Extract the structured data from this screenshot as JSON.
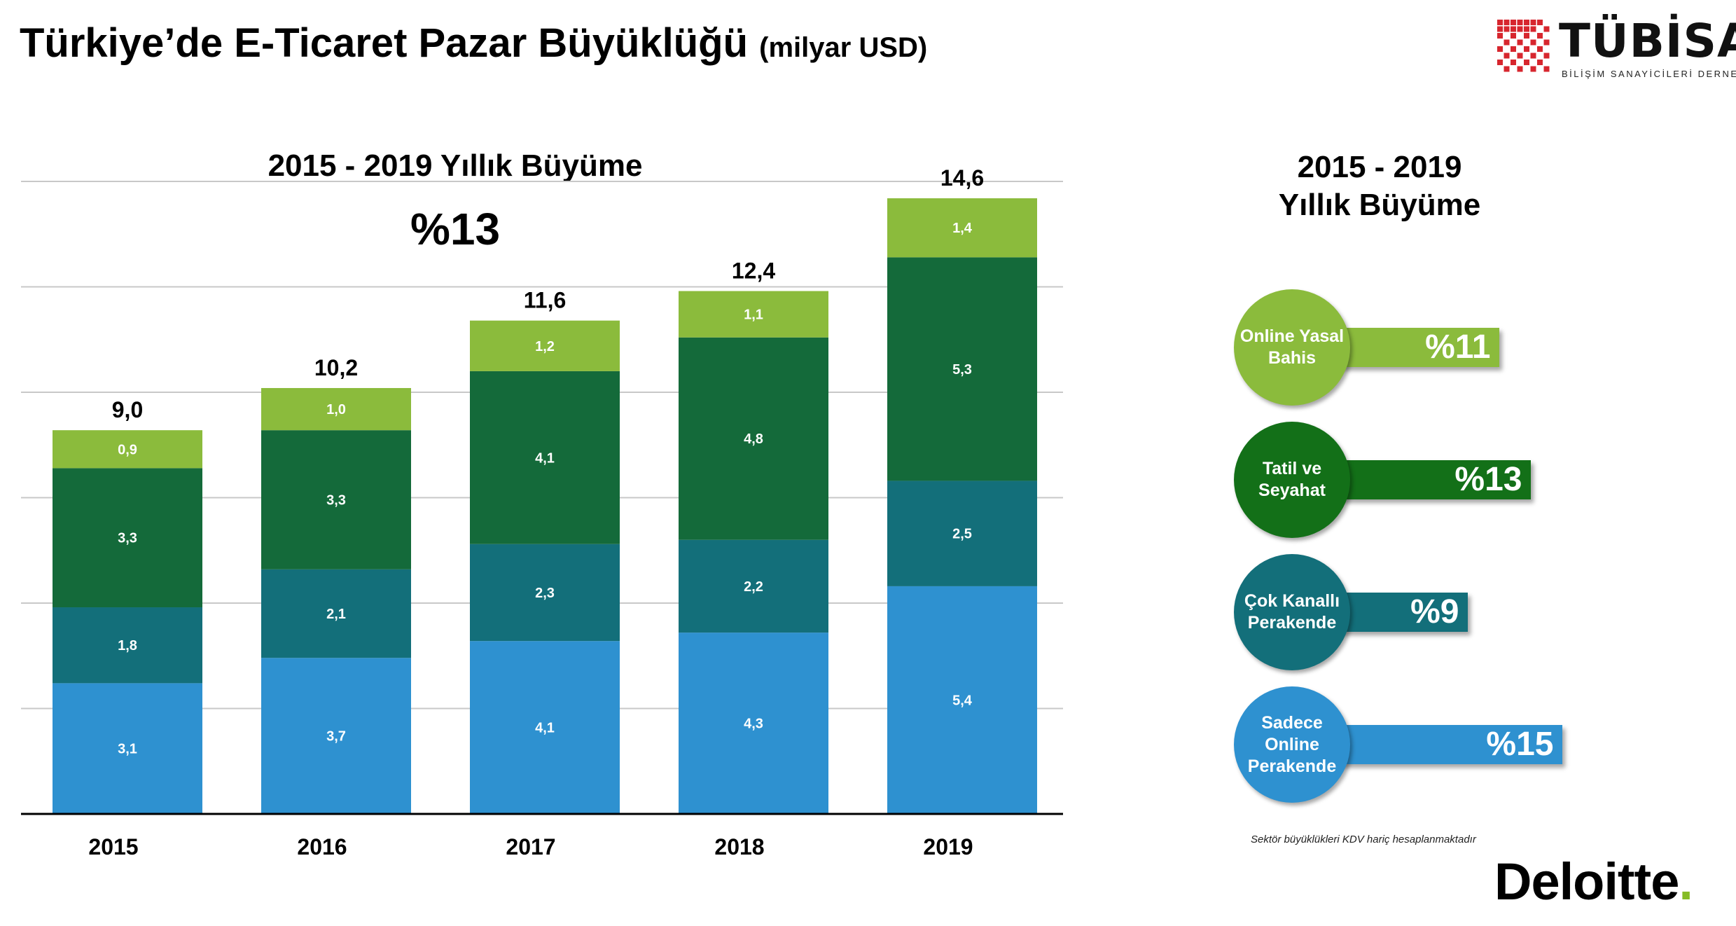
{
  "page": {
    "title": "Türkiye’de E-Ticaret Pazar Büyüklüğü",
    "title_unit": "(milyar USD)"
  },
  "logo": {
    "name": "TÜBİSAD",
    "tagline": "BİLİŞİM SANAYİCİLERİ DERNEĞİ",
    "colors": {
      "red": "#d7262e",
      "dark": "#111111"
    }
  },
  "left_growth": {
    "title": "2015 - 2019 Yıllık Büyüme",
    "value": "%13"
  },
  "right_growth": {
    "title_line1": "2015 - 2019",
    "title_line2": "Yıllık Büyüme"
  },
  "chart_data": {
    "type": "bar",
    "stacked": true,
    "categories": [
      "2015",
      "2016",
      "2017",
      "2018",
      "2019"
    ],
    "series": [
      {
        "key": "sadece_online",
        "values": [
          3.1,
          3.7,
          4.1,
          4.3,
          5.4
        ],
        "labels": [
          "3,1",
          "3,7",
          "4,1",
          "4,3",
          "5,4"
        ],
        "color": "#2e91d0"
      },
      {
        "key": "cok_kanalli",
        "values": [
          1.8,
          2.1,
          2.3,
          2.2,
          2.5
        ],
        "labels": [
          "1,8",
          "2,1",
          "2,3",
          "2,2",
          "2,5"
        ],
        "color": "#136f7a"
      },
      {
        "key": "tatil",
        "values": [
          3.3,
          3.3,
          4.1,
          4.8,
          5.3
        ],
        "labels": [
          "3,3",
          "3,3",
          "4,1",
          "4,8",
          "5,3"
        ],
        "color": "#146a3a"
      },
      {
        "key": "online_bahis",
        "values": [
          0.9,
          1.0,
          1.2,
          1.1,
          1.4
        ],
        "labels": [
          "0,9",
          "1,0",
          "1,2",
          "1,1",
          "1,4"
        ],
        "color": "#8bbb3c"
      }
    ],
    "totals": [
      9.0,
      10.2,
      11.6,
      12.4,
      14.6
    ],
    "total_labels": [
      "9,0",
      "10,2",
      "11,6",
      "12,4",
      "14,6"
    ],
    "ylim": [
      0,
      15
    ],
    "grid": true,
    "xlabel": "",
    "ylabel": ""
  },
  "segments": [
    {
      "label": "Online Yasal\nBahis",
      "growth": "%11",
      "growth_value": 11,
      "color": "#8bbb3c"
    },
    {
      "label": "Tatil ve\nSeyahat",
      "growth": "%13",
      "growth_value": 13,
      "color": "#137018"
    },
    {
      "label": "Çok Kanallı\nPerakende",
      "growth": "%9",
      "growth_value": 9,
      "color": "#136f7a"
    },
    {
      "label": "Sadece Online\nPerakende",
      "growth": "%15",
      "growth_value": 15,
      "color": "#2e91d0"
    }
  ],
  "footnote": "Sektör büyüklükleri KDV hariç hesaplanmaktadır",
  "brand": {
    "name": "Deloitte",
    "dot": ".",
    "dot_color": "#86bc25"
  }
}
